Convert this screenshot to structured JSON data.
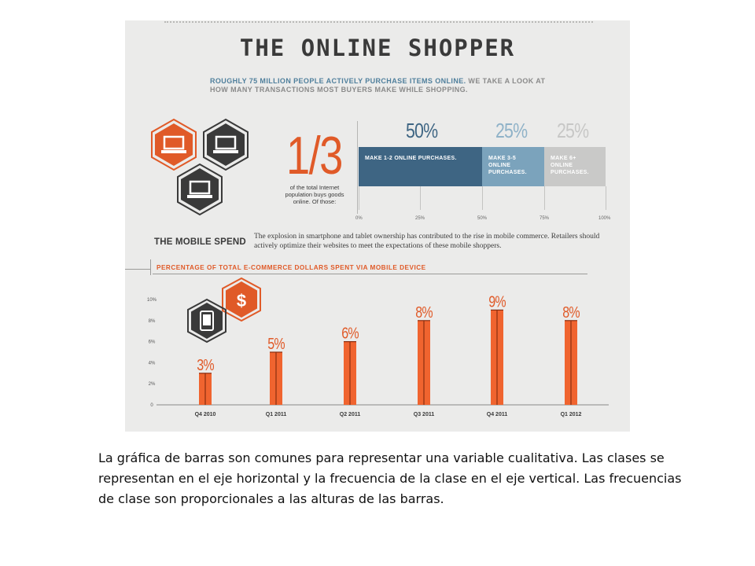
{
  "infographic": {
    "title": "THE ONLINE SHOPPER",
    "intro_lead": "ROUGHLY 75 MILLION PEOPLE ACTIVELY PURCHASE ITEMS ONLINE.",
    "intro_rest": " WE TAKE A LOOK AT HOW MANY TRANSACTIONS MOST BUYERS MAKE WHILE SHOPPING.",
    "fraction": "1/3",
    "fraction_caption": "of the total Internet population buys goods online. Of those:",
    "breakdown": [
      {
        "percent": "50%",
        "label": "MAKE 1-2 ONLINE PURCHASES.",
        "share": 50,
        "color": "#3e6583",
        "text_color": "#3e6583"
      },
      {
        "percent": "25%",
        "label": "MAKE 3-5 ONLINE PURCHASES.",
        "share": 25,
        "color": "#7ba3bc",
        "text_color": "#8fb2c8"
      },
      {
        "percent": "25%",
        "label": "MAKE 6+ ONLINE PURCHASES.",
        "share": 25,
        "color": "#c9c9c8",
        "text_color": "#c7c7c6"
      }
    ],
    "breakdown_ticks": [
      "0%",
      "25%",
      "50%",
      "75%",
      "100%"
    ],
    "mobile_title": "THE MOBILE SPEND",
    "mobile_desc": "The explosion in smartphone and tablet ownership has contributed to the rise in mobile commerce. Retailers should actively optimize their websites to meet the expectations of these mobile shoppers.",
    "dollar_symbol": "$",
    "icons": [
      "laptop-icon",
      "laptop-icon",
      "laptop-icon",
      "dollar-icon",
      "tablet-icon"
    ],
    "colors": {
      "accent": "#e05a28",
      "dark": "#3a3a3a",
      "blue": "#3e6583",
      "light_blue": "#7ba3bc",
      "gray": "#c9c9c8"
    }
  },
  "chart_data": {
    "type": "bar",
    "title": "PERCENTAGE OF TOTAL E-COMMERCE DOLLARS SPENT VIA MOBILE DEVICE",
    "categories": [
      "Q4 2010",
      "Q1 2011",
      "Q2 2011",
      "Q3 2011",
      "Q4 2011",
      "Q1 2012"
    ],
    "values": [
      3,
      5,
      6,
      8,
      9,
      8
    ],
    "value_labels": [
      "3%",
      "5%",
      "6%",
      "8%",
      "9%",
      "8%"
    ],
    "y_ticks": [
      "0",
      "2%",
      "4%",
      "6%",
      "8%",
      "10%"
    ],
    "ylim": [
      0,
      10
    ],
    "grid": false,
    "bar_color": "#f0642f"
  },
  "caption": "La gráfica de barras son comunes para representar una variable cualitativa. Las clases se representan en el eje horizontal y la frecuencia de la clase en el eje vertical. Las frecuencias de clase son proporcionales a las alturas de las barras."
}
